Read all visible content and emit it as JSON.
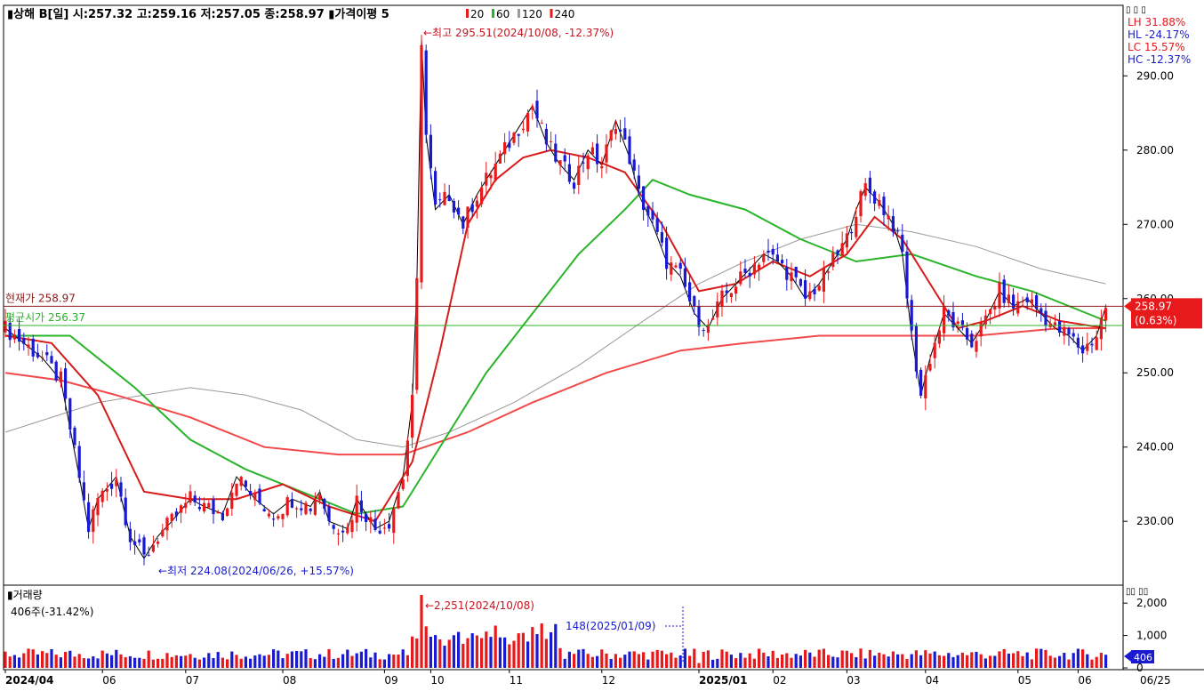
{
  "header": {
    "title_line": "▮상해 B[일] 시:257.32 고:259.16 저:257.05 종:258.97 ▮가격이평 5",
    "ma_labels": [
      {
        "label": "20",
        "color": "#e8191b"
      },
      {
        "label": "60",
        "color": "#2ab42a"
      },
      {
        "label": "120",
        "color": "#9a9a9a"
      },
      {
        "label": "240",
        "color": "#e8191b"
      }
    ],
    "right_buttons": "▯ ▯ ▯",
    "stats": [
      {
        "label": "LH  31.88%",
        "color": "#e8191b"
      },
      {
        "label": "HL -24.17%",
        "color": "#1a1ad0"
      },
      {
        "label": "LC  15.57%",
        "color": "#e8191b"
      },
      {
        "label": "HC -12.37%",
        "color": "#1a1ad0"
      }
    ]
  },
  "price_panel": {
    "y_ticks": [
      "290.00",
      "280.00",
      "270.00",
      "260.00",
      "250.00",
      "240.00",
      "230.00"
    ],
    "current_price_label": "현재가 258.97",
    "reference_label": "평균시가 256.37",
    "current_badge_value": "258.97",
    "current_badge_change": "(0.63%)",
    "high_annotation": "←최고 295.51(2024/10/08, -12.37%)",
    "low_annotation": "←최저 224.08(2024/06/26, +15.57%)"
  },
  "volume_panel": {
    "title": "▮거래량",
    "subtitle": "406주(-31.42%)",
    "y_ticks": [
      "2,000",
      "1,000",
      "0"
    ],
    "current_badge": "406",
    "max_annotation": "←2,251(2024/10/08)",
    "min_annotation": "148(2025/01/09)",
    "panel_buttons": "▯▯  ▯▯"
  },
  "x_axis": {
    "labels": [
      {
        "label": "2024/04",
        "bold": true
      },
      {
        "label": "06",
        "bold": false
      },
      {
        "label": "07",
        "bold": false
      },
      {
        "label": "08",
        "bold": false
      },
      {
        "label": "09",
        "bold": false
      },
      {
        "label": "10",
        "bold": false
      },
      {
        "label": "11",
        "bold": false
      },
      {
        "label": "12",
        "bold": false
      },
      {
        "label": "2025/01",
        "bold": true
      },
      {
        "label": "02",
        "bold": false
      },
      {
        "label": "03",
        "bold": false
      },
      {
        "label": "04",
        "bold": false
      },
      {
        "label": "05",
        "bold": false
      },
      {
        "label": "06",
        "bold": false
      }
    ],
    "end_label": "06/25"
  },
  "chart_data": {
    "type": "candlestick",
    "period": "daily",
    "close_series": [
      [
        0,
        256
      ],
      [
        4,
        254
      ],
      [
        8,
        252
      ],
      [
        12,
        249
      ],
      [
        16,
        236
      ],
      [
        18,
        229
      ],
      [
        20,
        233
      ],
      [
        24,
        236
      ],
      [
        27,
        228
      ],
      [
        30,
        225
      ],
      [
        33,
        228
      ],
      [
        36,
        230
      ],
      [
        40,
        233
      ],
      [
        43,
        232
      ],
      [
        47,
        231
      ],
      [
        50,
        236
      ],
      [
        54,
        233
      ],
      [
        58,
        231
      ],
      [
        62,
        233
      ],
      [
        66,
        232
      ],
      [
        68,
        234
      ],
      [
        70,
        230
      ],
      [
        74,
        229
      ],
      [
        76,
        233
      ],
      [
        80,
        229
      ],
      [
        83,
        230
      ],
      [
        86,
        236
      ],
      [
        88,
        246
      ],
      [
        89,
        262
      ],
      [
        90,
        295
      ],
      [
        91,
        282
      ],
      [
        93,
        272
      ],
      [
        96,
        274
      ],
      [
        99,
        270
      ],
      [
        102,
        274
      ],
      [
        105,
        277
      ],
      [
        108,
        280
      ],
      [
        111,
        283
      ],
      [
        114,
        286
      ],
      [
        117,
        281
      ],
      [
        120,
        278
      ],
      [
        123,
        276
      ],
      [
        126,
        280
      ],
      [
        129,
        278
      ],
      [
        132,
        284
      ],
      [
        135,
        279
      ],
      [
        137,
        274
      ],
      [
        140,
        270
      ],
      [
        143,
        265
      ],
      [
        146,
        263
      ],
      [
        149,
        258
      ],
      [
        152,
        256
      ],
      [
        155,
        260
      ],
      [
        158,
        262
      ],
      [
        161,
        264
      ],
      [
        164,
        266
      ],
      [
        167,
        265
      ],
      [
        170,
        263
      ],
      [
        173,
        260
      ],
      [
        176,
        262
      ],
      [
        179,
        265
      ],
      [
        182,
        268
      ],
      [
        184,
        272
      ],
      [
        186,
        275
      ],
      [
        189,
        273
      ],
      [
        192,
        270
      ],
      [
        194,
        266
      ],
      [
        196,
        255
      ],
      [
        198,
        247
      ],
      [
        200,
        252
      ],
      [
        203,
        258
      ],
      [
        206,
        256
      ],
      [
        209,
        254
      ],
      [
        212,
        257
      ],
      [
        215,
        261
      ],
      [
        218,
        259
      ],
      [
        221,
        260
      ],
      [
        224,
        258
      ],
      [
        227,
        256
      ],
      [
        230,
        255
      ],
      [
        233,
        253
      ],
      [
        236,
        255
      ],
      [
        238,
        258.97
      ]
    ],
    "ma20": [
      [
        0,
        255
      ],
      [
        10,
        254
      ],
      [
        20,
        247
      ],
      [
        30,
        234
      ],
      [
        40,
        233
      ],
      [
        50,
        233
      ],
      [
        60,
        235
      ],
      [
        70,
        232
      ],
      [
        80,
        230
      ],
      [
        88,
        238
      ],
      [
        94,
        253
      ],
      [
        100,
        270
      ],
      [
        106,
        276
      ],
      [
        112,
        279
      ],
      [
        118,
        280
      ],
      [
        126,
        279
      ],
      [
        134,
        277
      ],
      [
        142,
        270
      ],
      [
        150,
        261
      ],
      [
        158,
        262
      ],
      [
        166,
        265
      ],
      [
        174,
        263
      ],
      [
        182,
        266
      ],
      [
        188,
        271
      ],
      [
        194,
        268
      ],
      [
        200,
        262
      ],
      [
        206,
        256
      ],
      [
        212,
        257
      ],
      [
        220,
        259
      ],
      [
        228,
        257
      ],
      [
        238,
        256
      ]
    ],
    "ma60": [
      [
        0,
        255
      ],
      [
        14,
        255
      ],
      [
        28,
        248
      ],
      [
        40,
        241
      ],
      [
        52,
        237
      ],
      [
        64,
        234
      ],
      [
        76,
        231
      ],
      [
        86,
        232
      ],
      [
        94,
        240
      ],
      [
        104,
        250
      ],
      [
        114,
        258
      ],
      [
        124,
        266
      ],
      [
        134,
        272
      ],
      [
        140,
        276
      ],
      [
        148,
        274
      ],
      [
        160,
        272
      ],
      [
        172,
        268
      ],
      [
        184,
        265
      ],
      [
        196,
        266
      ],
      [
        210,
        263
      ],
      [
        222,
        261
      ],
      [
        234,
        258
      ],
      [
        238,
        257
      ]
    ],
    "ma120": [
      [
        0,
        242
      ],
      [
        20,
        246
      ],
      [
        40,
        248
      ],
      [
        52,
        247
      ],
      [
        64,
        245
      ],
      [
        76,
        241
      ],
      [
        86,
        240
      ],
      [
        96,
        242
      ],
      [
        110,
        246
      ],
      [
        124,
        251
      ],
      [
        138,
        257
      ],
      [
        150,
        262
      ],
      [
        160,
        265
      ],
      [
        172,
        268
      ],
      [
        184,
        270
      ],
      [
        196,
        269
      ],
      [
        210,
        267
      ],
      [
        224,
        264
      ],
      [
        238,
        262
      ]
    ],
    "ma240": [
      [
        0,
        250
      ],
      [
        12,
        249
      ],
      [
        24,
        247
      ],
      [
        40,
        244
      ],
      [
        56,
        240
      ],
      [
        72,
        239
      ],
      [
        86,
        239
      ],
      [
        100,
        242
      ],
      [
        114,
        246
      ],
      [
        130,
        250
      ],
      [
        146,
        253
      ],
      [
        160,
        254
      ],
      [
        176,
        255
      ],
      [
        192,
        255
      ],
      [
        210,
        255
      ],
      [
        228,
        256
      ],
      [
        238,
        256
      ]
    ],
    "high": {
      "value": 295.51,
      "date": "2024/10/08",
      "index": 90
    },
    "low": {
      "value": 224.08,
      "date": "2024/06/26",
      "index": 30
    },
    "last": {
      "value": 258.97,
      "change_pct": 0.63
    },
    "reference_line": 256.37,
    "ylim": [
      221.4,
      299.5
    ],
    "volume": {
      "max": {
        "value": 2251,
        "date": "2024/10/08",
        "index": 90
      },
      "min": {
        "value": 148,
        "date": "2025/01/09",
        "index": 150
      },
      "last": 406,
      "ylim": [
        0,
        2500
      ]
    },
    "n_bars": 239,
    "month_start_index": [
      0,
      21,
      39,
      60,
      82,
      92,
      109,
      129,
      150,
      166,
      182,
      199,
      219,
      232
    ]
  }
}
